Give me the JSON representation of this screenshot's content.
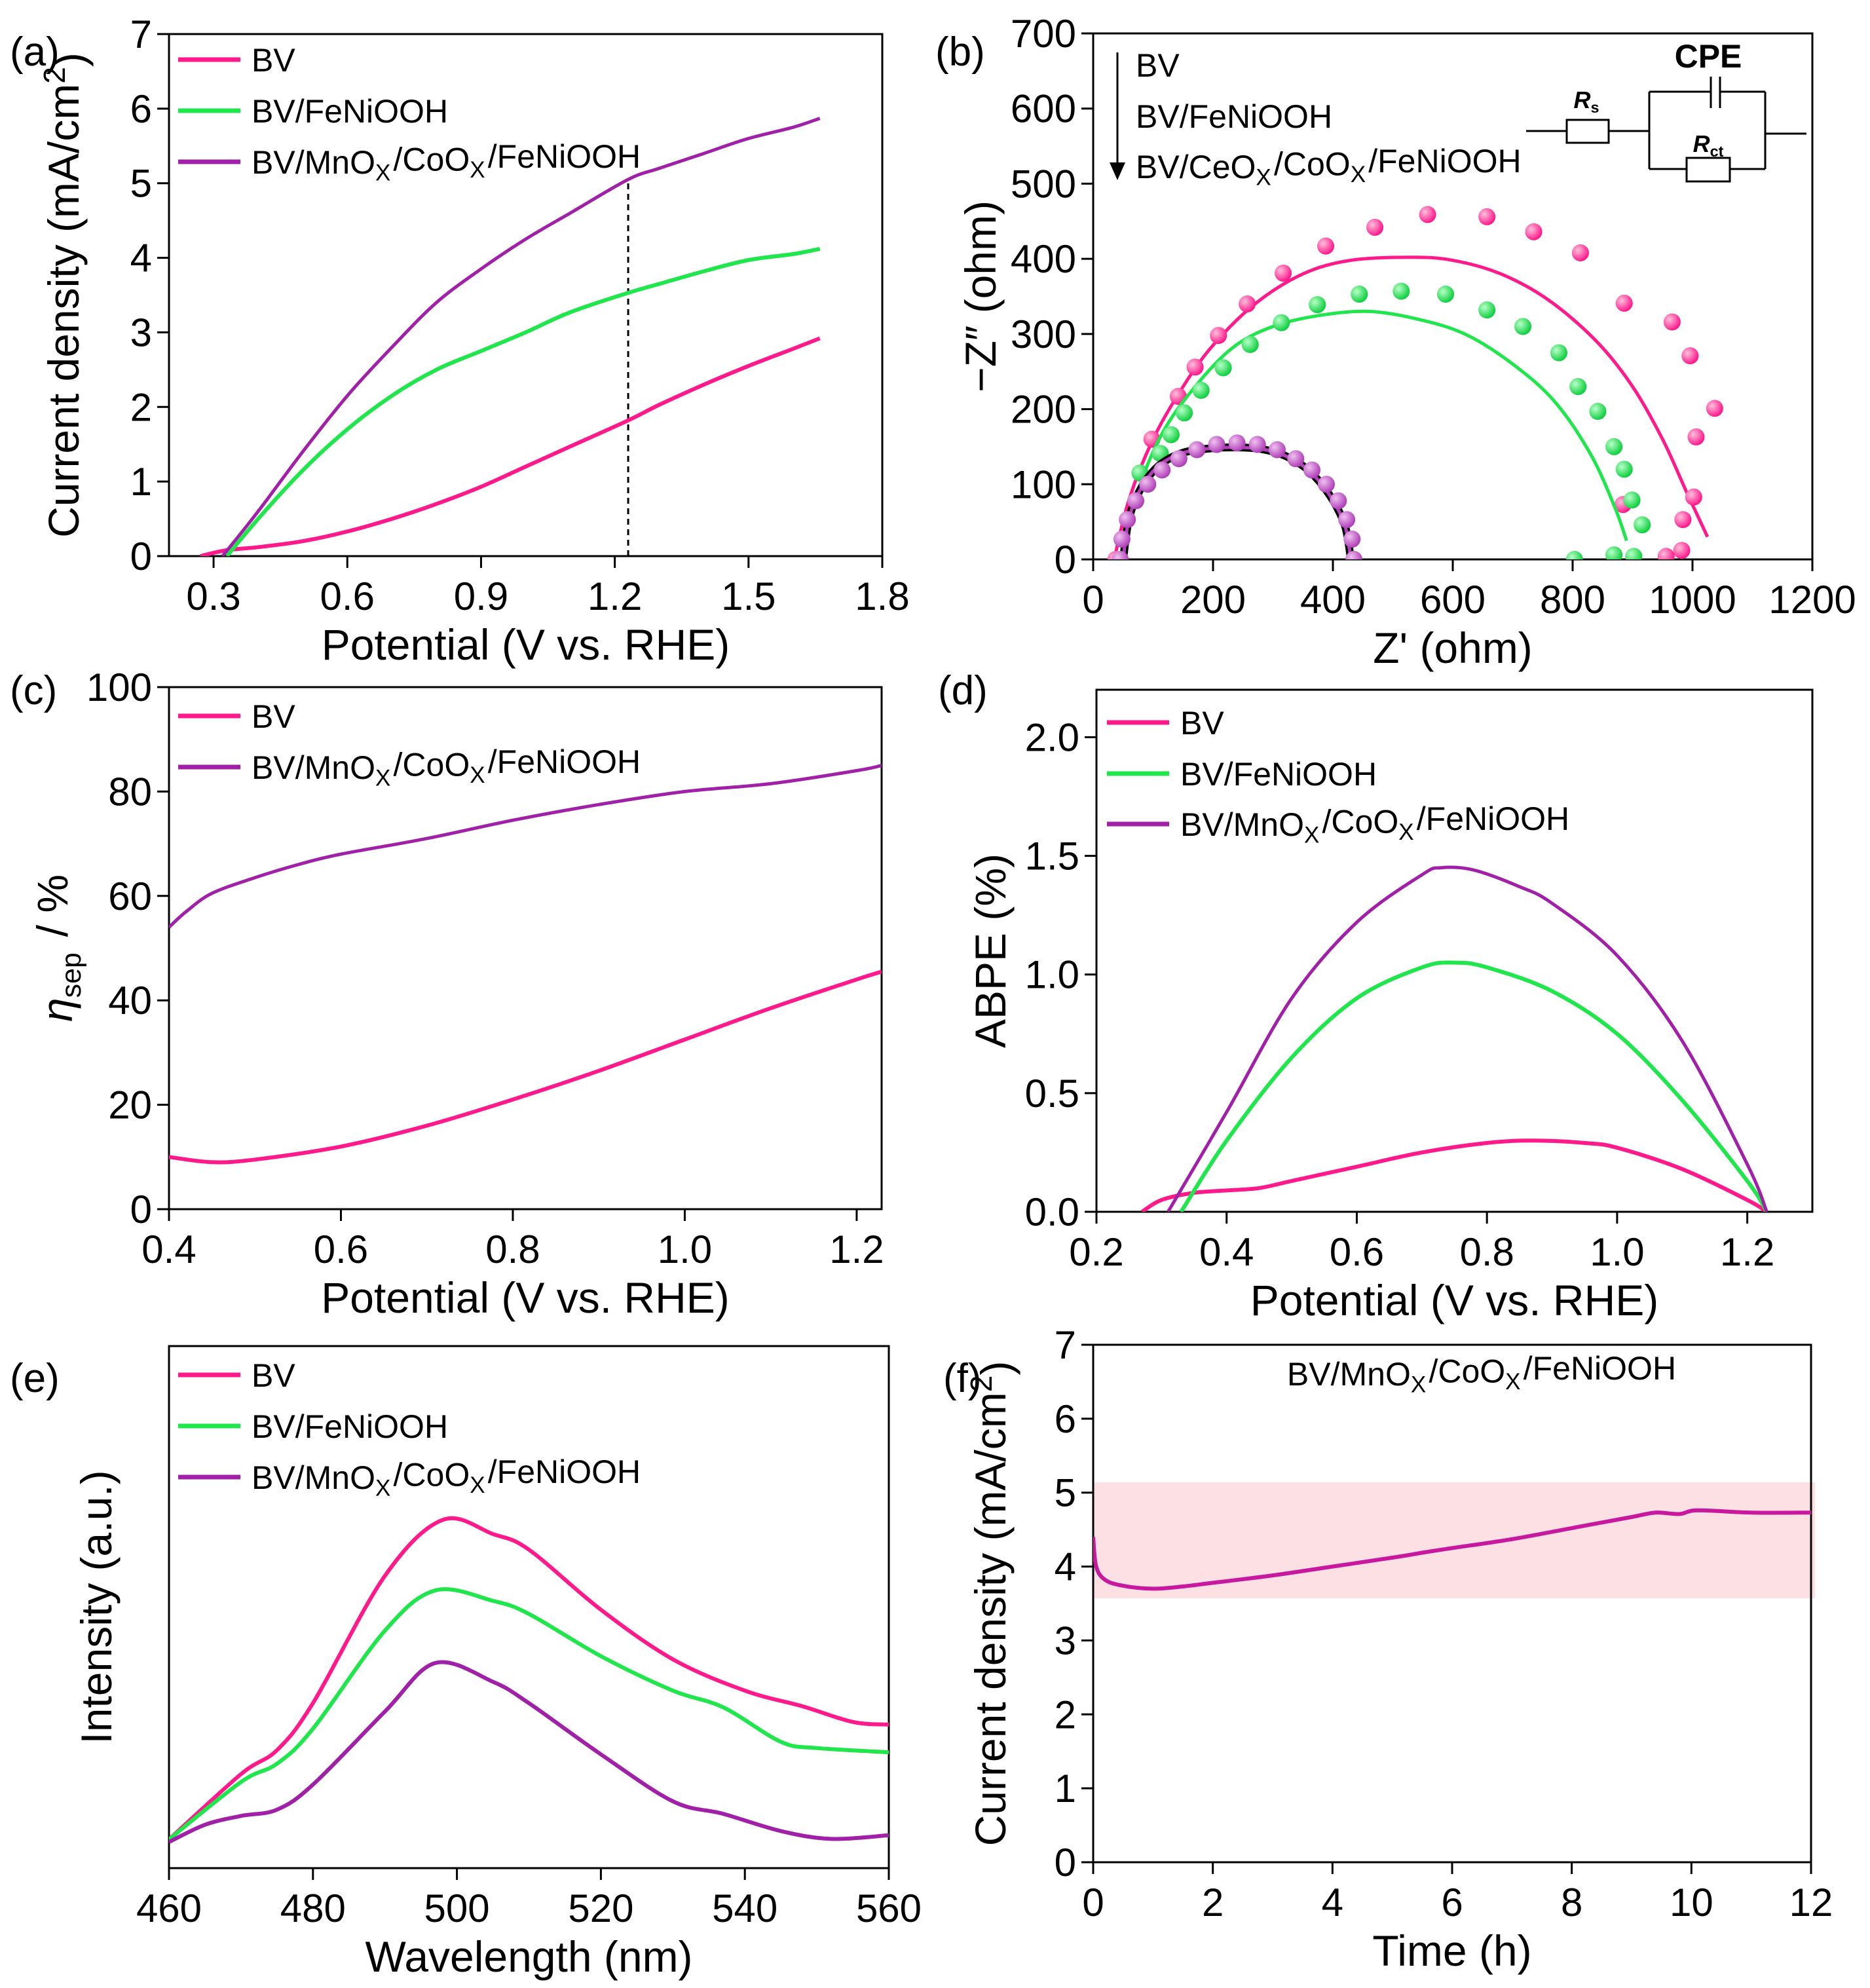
{
  "chart_data": [
    {
      "id": "a",
      "panel_label": "(a)",
      "type": "line",
      "xlabel": "Potential (V vs. RHE)",
      "ylabel": "Current density (mA/cm2)",
      "xlim": [
        0.2,
        1.8
      ],
      "ylim": [
        0,
        7
      ],
      "xticks": [
        "0.3",
        "0.6",
        "0.9",
        "1.2",
        "1.5",
        "1.8"
      ],
      "xtick_values": [
        0.3,
        0.6,
        0.9,
        1.2,
        1.5,
        1.8
      ],
      "yticks": [
        "0",
        "1",
        "2",
        "3",
        "4",
        "5",
        "6",
        "7"
      ],
      "ytick_values": [
        0,
        1,
        2,
        3,
        4,
        5,
        6,
        7
      ],
      "legend": "top-left",
      "reference_line": {
        "x": 1.23,
        "y_to": 5.05,
        "style": "dashed"
      },
      "series": [
        {
          "name": "BV",
          "color": "#ff1a8c",
          "x": [
            0.27,
            0.33,
            0.4,
            0.5,
            0.6,
            0.7,
            0.8,
            0.9,
            1.0,
            1.1,
            1.23,
            1.3,
            1.4,
            1.5,
            1.6,
            1.66
          ],
          "y": [
            0,
            0.08,
            0.12,
            0.2,
            0.33,
            0.5,
            0.7,
            0.93,
            1.2,
            1.47,
            1.82,
            2.03,
            2.3,
            2.55,
            2.78,
            2.92
          ]
        },
        {
          "name": "BV/FeNiOOH",
          "color": "#1ee64b",
          "x": [
            0.33,
            0.4,
            0.5,
            0.6,
            0.7,
            0.8,
            0.9,
            1.0,
            1.1,
            1.23,
            1.3,
            1.4,
            1.5,
            1.6,
            1.66
          ],
          "y": [
            0,
            0.5,
            1.15,
            1.7,
            2.15,
            2.5,
            2.75,
            3.0,
            3.27,
            3.53,
            3.65,
            3.82,
            3.97,
            4.05,
            4.12
          ]
        },
        {
          "name": "BV/MnOX/CoOX/FeNiOOH",
          "color": "#a020a8",
          "x": [
            0.32,
            0.4,
            0.5,
            0.6,
            0.7,
            0.8,
            0.9,
            1.0,
            1.1,
            1.23,
            1.3,
            1.4,
            1.5,
            1.6,
            1.66
          ],
          "y": [
            0,
            0.6,
            1.4,
            2.15,
            2.8,
            3.4,
            3.85,
            4.25,
            4.6,
            5.05,
            5.2,
            5.4,
            5.6,
            5.75,
            5.87
          ]
        }
      ]
    },
    {
      "id": "b",
      "panel_label": "(b)",
      "type": "scatter",
      "xlabel": "Z' (ohm)",
      "ylabel": "−Z″ (ohm)",
      "xlim": [
        0,
        1200
      ],
      "ylim": [
        0,
        700
      ],
      "xticks": [
        "0",
        "200",
        "400",
        "600",
        "800",
        "1000",
        "1200"
      ],
      "xtick_values": [
        0,
        200,
        400,
        600,
        800,
        1000,
        1200
      ],
      "yticks": [
        "0",
        "100",
        "200",
        "300",
        "400",
        "500",
        "600",
        "700"
      ],
      "ytick_values": [
        0,
        100,
        200,
        300,
        400,
        500,
        600,
        700
      ],
      "legend": "top-left",
      "legend_order_arrow": true,
      "circuit": {
        "cpe": "CPE",
        "rs": "Rs",
        "rct": "Rct"
      },
      "series": [
        {
          "name": "BV",
          "color": "#ff1a8c",
          "points_x": [
            38,
            98,
            142,
            170,
            209,
            257,
            317,
            388,
            470,
            558,
            657,
            735,
            813,
            886,
            966,
            996,
            1006,
            1037,
            1002,
            984,
            982,
            956,
            884
          ],
          "points_y": [
            0,
            160,
            217,
            256,
            298,
            340,
            381,
            417,
            442,
            459,
            456,
            436,
            408,
            341,
            316,
            271,
            163,
            201,
            83,
            53,
            12,
            4,
            73
          ],
          "fit_x": [
            35,
            60,
            100,
            150,
            200,
            270,
            350,
            430,
            530,
            600,
            680,
            760,
            840,
            900,
            950,
            990,
            1025
          ],
          "fit_y": [
            0,
            80,
            160,
            230,
            285,
            340,
            380,
            398,
            402,
            398,
            380,
            345,
            290,
            230,
            160,
            90,
            30
          ]
        },
        {
          "name": "BV/FeNiOOH",
          "color": "#1ee64b",
          "points_x": [
            78,
            112,
            130,
            152,
            180,
            217,
            262,
            314,
            374,
            444,
            514,
            588,
            657,
            717,
            777,
            809,
            842,
            869,
            886,
            899,
            916,
            902,
            869,
            803
          ],
          "points_y": [
            115,
            141,
            166,
            195,
            225,
            255,
            286,
            315,
            339,
            353,
            357,
            353,
            332,
            310,
            275,
            230,
            197,
            150,
            120,
            79,
            46,
            4,
            6,
            0
          ],
          "fit_x": [
            45,
            70,
            110,
            160,
            230,
            300,
            380,
            460,
            540,
            620,
            700,
            770,
            830,
            870,
            890
          ],
          "fit_y": [
            0,
            80,
            160,
            220,
            280,
            310,
            325,
            330,
            320,
            300,
            260,
            210,
            140,
            70,
            25
          ]
        },
        {
          "name": "BV/CeOX/CoOX/FeNiOOH",
          "color": "#b040b8",
          "points_x": [
            45,
            48,
            57,
            71,
            91,
            115,
            143,
            173,
            206,
            240,
            274,
            307,
            338,
            365,
            389,
            409,
            423,
            432,
            435
          ],
          "points_y": [
            0,
            27,
            53,
            78,
            100,
            119,
            134,
            146,
            153,
            155,
            153,
            146,
            134,
            119,
            100,
            78,
            53,
            27,
            0
          ],
          "fit_x": [
            50,
            60,
            80,
            110,
            150,
            200,
            240,
            280,
            320,
            360,
            395,
            420,
            430
          ],
          "fit_y": [
            0,
            55,
            95,
            125,
            142,
            148,
            149,
            147,
            138,
            118,
            85,
            45,
            0
          ]
        }
      ]
    },
    {
      "id": "c",
      "panel_label": "(c)",
      "type": "line",
      "xlabel": "Potential (V vs. RHE)",
      "ylabel": "ηsep / %",
      "xlim": [
        0.4,
        1.229
      ],
      "ylim": [
        0,
        100
      ],
      "xticks": [
        "0.4",
        "0.6",
        "0.8",
        "1.0",
        "1.2"
      ],
      "xtick_values": [
        0.4,
        0.6,
        0.8,
        1.0,
        1.2
      ],
      "yticks": [
        "0",
        "20",
        "40",
        "60",
        "80",
        "100"
      ],
      "ytick_values": [
        0,
        20,
        40,
        60,
        80,
        100
      ],
      "legend": "top-left",
      "series": [
        {
          "name": "BV",
          "color": "#ff1a8c",
          "x": [
            0.4,
            0.45,
            0.5,
            0.6,
            0.7,
            0.8,
            0.9,
            1.0,
            1.1,
            1.2,
            1.229
          ],
          "y": [
            10,
            9,
            9.5,
            12,
            16,
            21,
            26.5,
            32.5,
            38.5,
            44,
            45.5
          ]
        },
        {
          "name": "BV/MnOX/CoOX/FeNiOOH",
          "color": "#a020a8",
          "x": [
            0.4,
            0.42,
            0.45,
            0.5,
            0.55,
            0.6,
            0.7,
            0.8,
            0.9,
            1.0,
            1.1,
            1.2,
            1.229
          ],
          "y": [
            54,
            57,
            60.5,
            63.5,
            66,
            68,
            71,
            74.5,
            77.5,
            80,
            81.5,
            84,
            85
          ]
        }
      ]
    },
    {
      "id": "d",
      "panel_label": "(d)",
      "type": "line",
      "xlabel": "Potential (V vs. RHE)",
      "ylabel": "ABPE (%)",
      "xlim": [
        0.2,
        1.3
      ],
      "ylim": [
        0,
        2.2
      ],
      "xticks": [
        "0.2",
        "0.4",
        "0.6",
        "0.8",
        "1.0",
        "1.2"
      ],
      "xtick_values": [
        0.2,
        0.4,
        0.6,
        0.8,
        1.0,
        1.2
      ],
      "yticks": [
        "0.0",
        "0.5",
        "1.0",
        "1.5",
        "2.0"
      ],
      "ytick_values": [
        0,
        0.5,
        1.0,
        1.5,
        2.0
      ],
      "legend": "top-left",
      "series": [
        {
          "name": "BV",
          "color": "#ff1a8c",
          "x": [
            0.27,
            0.3,
            0.35,
            0.4,
            0.45,
            0.5,
            0.6,
            0.7,
            0.8,
            0.87,
            0.95,
            1.0,
            1.1,
            1.2,
            1.23
          ],
          "y": [
            0,
            0.05,
            0.08,
            0.09,
            0.1,
            0.13,
            0.19,
            0.25,
            0.29,
            0.3,
            0.29,
            0.27,
            0.18,
            0.05,
            0
          ]
        },
        {
          "name": "BV/FeNiOOH",
          "color": "#1ee64b",
          "x": [
            0.33,
            0.4,
            0.5,
            0.6,
            0.7,
            0.75,
            0.8,
            0.9,
            1.0,
            1.1,
            1.2,
            1.23
          ],
          "y": [
            0,
            0.3,
            0.65,
            0.9,
            1.03,
            1.05,
            1.03,
            0.93,
            0.75,
            0.47,
            0.13,
            0
          ]
        },
        {
          "name": "BV/MnOX/CoOX/FeNiOOH",
          "color": "#a020a8",
          "x": [
            0.31,
            0.4,
            0.5,
            0.6,
            0.7,
            0.73,
            0.78,
            0.85,
            0.9,
            1.0,
            1.1,
            1.2,
            1.23
          ],
          "y": [
            0,
            0.42,
            0.9,
            1.22,
            1.42,
            1.45,
            1.44,
            1.37,
            1.3,
            1.08,
            0.72,
            0.2,
            0
          ]
        }
      ]
    },
    {
      "id": "e",
      "panel_label": "(e)",
      "type": "line",
      "xlabel": "Wavelength (nm)",
      "ylabel": "Intensity (a.u.)",
      "xlim": [
        460,
        560
      ],
      "ylim": [
        0,
        1
      ],
      "xticks": [
        "460",
        "480",
        "500",
        "520",
        "540",
        "560"
      ],
      "xtick_values": [
        460,
        480,
        500,
        520,
        540,
        560
      ],
      "yticks": [],
      "ytick_values": [],
      "legend": "top-left",
      "series": [
        {
          "name": "BV",
          "color": "#ff1a8c",
          "x": [
            460,
            470,
            475,
            480,
            490,
            498,
            505,
            510,
            520,
            530,
            540,
            548,
            555,
            560
          ],
          "y": [
            0.055,
            0.18,
            0.226,
            0.316,
            0.56,
            0.667,
            0.64,
            0.61,
            0.495,
            0.4,
            0.34,
            0.31,
            0.28,
            0.275
          ]
        },
        {
          "name": "BV/FeNiOOH",
          "color": "#1ee64b",
          "x": [
            460,
            470,
            475,
            480,
            490,
            497,
            505,
            510,
            520,
            530,
            537,
            545,
            550,
            560
          ],
          "y": [
            0.055,
            0.165,
            0.2,
            0.267,
            0.455,
            0.532,
            0.512,
            0.487,
            0.406,
            0.34,
            0.308,
            0.242,
            0.23,
            0.222
          ]
        },
        {
          "name": "BV/MnOX/CoOX/FeNiOOH",
          "color": "#a020a8",
          "x": [
            460,
            465,
            470,
            475,
            480,
            490,
            497,
            505,
            510,
            520,
            530,
            537,
            545,
            552,
            560
          ],
          "y": [
            0.05,
            0.083,
            0.1,
            0.112,
            0.16,
            0.3,
            0.393,
            0.357,
            0.316,
            0.218,
            0.128,
            0.104,
            0.071,
            0.056,
            0.063
          ]
        }
      ]
    },
    {
      "id": "f",
      "panel_label": "(f)",
      "type": "line",
      "title": "BV/MnOX/CoOX/FeNiOOH",
      "xlabel": "Time (h)",
      "ylabel": "Current density (mA/cm2)",
      "xlim": [
        0,
        12
      ],
      "ylim": [
        0,
        7
      ],
      "xticks": [
        "0",
        "2",
        "4",
        "6",
        "8",
        "10",
        "12"
      ],
      "xtick_values": [
        0,
        2,
        4,
        6,
        8,
        10,
        12
      ],
      "yticks": [
        "0",
        "1",
        "2",
        "3",
        "4",
        "5",
        "6",
        "7"
      ],
      "ytick_values": [
        0,
        1,
        2,
        3,
        4,
        5,
        6,
        7
      ],
      "highlight_band": {
        "y_from": 3.57,
        "y_to": 5.14,
        "color": "#fde0e3"
      },
      "series": [
        {
          "name": "BV/MnOX/CoOX/FeNiOOH",
          "color": "#c8189e",
          "x": [
            0,
            0.05,
            0.2,
            0.5,
            1.0,
            1.5,
            2,
            3,
            4,
            5,
            5.6,
            6,
            7,
            8,
            9,
            9.4,
            9.8,
            10.1,
            11,
            12
          ],
          "y": [
            4.4,
            4.0,
            3.82,
            3.74,
            3.7,
            3.73,
            3.78,
            3.88,
            4.0,
            4.12,
            4.2,
            4.25,
            4.37,
            4.52,
            4.67,
            4.73,
            4.71,
            4.76,
            4.73,
            4.73
          ]
        }
      ]
    }
  ]
}
